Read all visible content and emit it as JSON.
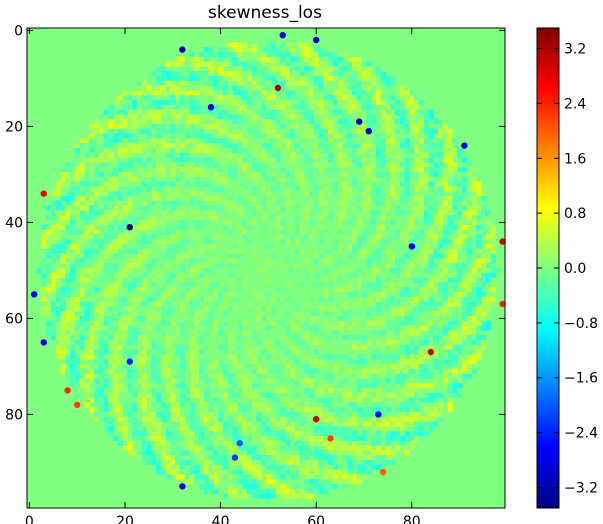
{
  "chart_data": {
    "type": "heatmap",
    "title": "skewness_los",
    "xlabel": "",
    "ylabel": "",
    "grid_size": [
      100,
      100
    ],
    "xlim": [
      0,
      99
    ],
    "ylim": [
      99,
      0
    ],
    "x_ticks": [
      0,
      20,
      40,
      60,
      80
    ],
    "y_ticks": [
      0,
      20,
      40,
      60,
      80
    ],
    "x_tick_labels": [
      "0",
      "20",
      "40",
      "60",
      "80"
    ],
    "y_tick_labels": [
      "0",
      "20",
      "40",
      "60",
      "80"
    ],
    "colormap": "jet",
    "colorbar": {
      "range": [
        -3.5,
        3.5
      ],
      "ticks": [
        3.2,
        2.4,
        1.6,
        0.8,
        0.0,
        -0.8,
        -1.6,
        -2.4,
        -3.2
      ],
      "tick_labels": [
        "3.2",
        "2.4",
        "1.6",
        "0.8",
        "0.0",
        "−0.8",
        "−1.6",
        "−2.4",
        "−3.2"
      ],
      "colors": [
        "#000080",
        "#0000ff",
        "#0080ff",
        "#00ffff",
        "#80ff80",
        "#ffff00",
        "#ff8000",
        "#ff0000",
        "#800000"
      ]
    },
    "background_value": 0.0,
    "disk": {
      "center": [
        50,
        50
      ],
      "radius": 48
    },
    "notable_points": [
      {
        "x": 32,
        "y": 4,
        "value": -3.2
      },
      {
        "x": 53,
        "y": 1,
        "value": -2.8
      },
      {
        "x": 60,
        "y": 2,
        "value": -3.0
      },
      {
        "x": 52,
        "y": 12,
        "value": 3.2
      },
      {
        "x": 38,
        "y": 16,
        "value": -3.0
      },
      {
        "x": 69,
        "y": 19,
        "value": -3.2
      },
      {
        "x": 71,
        "y": 21,
        "value": -3.2
      },
      {
        "x": 91,
        "y": 24,
        "value": -2.8
      },
      {
        "x": 3,
        "y": 34,
        "value": 2.8
      },
      {
        "x": 21,
        "y": 41,
        "value": -3.5
      },
      {
        "x": 99,
        "y": 44,
        "value": 3.0
      },
      {
        "x": 80,
        "y": 45,
        "value": -2.8
      },
      {
        "x": 1,
        "y": 55,
        "value": -2.6
      },
      {
        "x": 3,
        "y": 65,
        "value": -2.8
      },
      {
        "x": 84,
        "y": 67,
        "value": 3.0
      },
      {
        "x": 21,
        "y": 69,
        "value": -2.4
      },
      {
        "x": 8,
        "y": 75,
        "value": 2.4
      },
      {
        "x": 10,
        "y": 78,
        "value": 2.2
      },
      {
        "x": 60,
        "y": 81,
        "value": 3.0
      },
      {
        "x": 63,
        "y": 85,
        "value": 2.2
      },
      {
        "x": 73,
        "y": 80,
        "value": -2.6
      },
      {
        "x": 74,
        "y": 92,
        "value": 2.0
      },
      {
        "x": 32,
        "y": 95,
        "value": -3.0
      },
      {
        "x": 44,
        "y": 86,
        "value": -2.0
      },
      {
        "x": 43,
        "y": 89,
        "value": -2.2
      },
      {
        "x": 99,
        "y": 57,
        "value": 2.4
      }
    ]
  }
}
